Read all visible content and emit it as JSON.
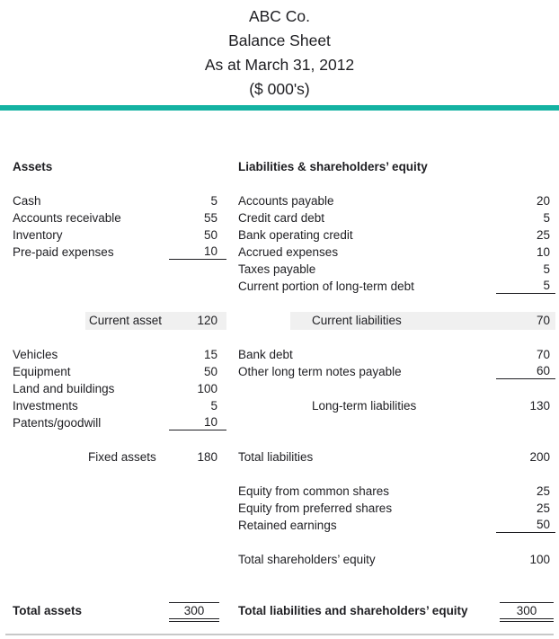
{
  "header": {
    "company": "ABC Co.",
    "title": "Balance Sheet",
    "date_line": "As at March 31, 2012",
    "units": "($ 000's)"
  },
  "colors": {
    "accent_rule": "#14b2a2",
    "row_highlight": "#f0f0f0",
    "text": "#1e1e22",
    "bottom_rule": "#c8c8c8"
  },
  "assets": {
    "section_title": "Assets",
    "current": {
      "items": [
        {
          "label": "Cash",
          "value": "5"
        },
        {
          "label": "Accounts receivable",
          "value": "55"
        },
        {
          "label": "Inventory",
          "value": "50"
        },
        {
          "label": "Pre-paid expenses",
          "value": "10"
        }
      ],
      "subtotal": {
        "label": "Current asset",
        "value": "120"
      }
    },
    "fixed": {
      "items": [
        {
          "label": "Vehicles",
          "value": "15"
        },
        {
          "label": "Equipment",
          "value": "50"
        },
        {
          "label": "Land and buildings",
          "value": "100"
        },
        {
          "label": "Investments",
          "value": "5"
        },
        {
          "label": "Patents/goodwill",
          "value": "10"
        }
      ],
      "subtotal": {
        "label": "Fixed assets",
        "value": "180"
      }
    },
    "total": {
      "label": "Total assets",
      "value": "300"
    }
  },
  "liabilities_equity": {
    "section_title": "Liabilities & shareholders’ equity",
    "current": {
      "items": [
        {
          "label": "Accounts payable",
          "value": "20"
        },
        {
          "label": "Credit card debt",
          "value": "5"
        },
        {
          "label": "Bank operating credit",
          "value": "25"
        },
        {
          "label": "Accrued expenses",
          "value": "10"
        },
        {
          "label": "Taxes payable",
          "value": "5"
        },
        {
          "label": "Current portion of long-term debt",
          "value": "5"
        }
      ],
      "subtotal": {
        "label": "Current liabilities",
        "value": "70"
      }
    },
    "long_term": {
      "items": [
        {
          "label": "Bank debt",
          "value": "70"
        },
        {
          "label": "Other long term notes payable",
          "value": "60"
        }
      ],
      "subtotal": {
        "label": "Long-term liabilities",
        "value": "130"
      }
    },
    "total_liabilities": {
      "label": "Total liabilities",
      "value": "200"
    },
    "equity": {
      "items": [
        {
          "label": "Equity from common shares",
          "value": "25"
        },
        {
          "label": "Equity from preferred shares",
          "value": "25"
        },
        {
          "label": "Retained earnings",
          "value": "50"
        }
      ],
      "total": {
        "label": "Total shareholders’ equity",
        "value": "100"
      }
    },
    "total": {
      "label": "Total liabilities and shareholders’ equity",
      "value": "300"
    }
  }
}
